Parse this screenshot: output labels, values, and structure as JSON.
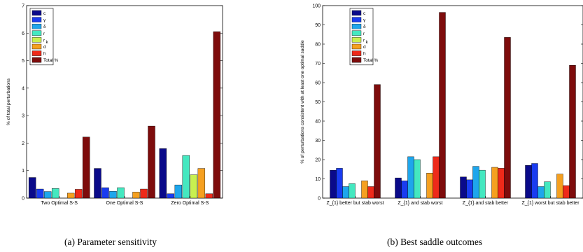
{
  "colors": {
    "c": "#0a0a8a",
    "gamma": "#1a3cf0",
    "b": "#1ea6ec",
    "r": "#44e8c0",
    "rk": "#c8f050",
    "d": "#f5a020",
    "h": "#ee2a1a",
    "total": "#7e0c0c"
  },
  "chart_data": [
    {
      "type": "bar",
      "caption": "(a)  Parameter sensitivity",
      "ylabel": "% of total perturbations",
      "ylim": [
        0,
        7
      ],
      "yticks": [
        "0",
        "1",
        "2",
        "3",
        "4",
        "5",
        "6",
        "7"
      ],
      "legend_position": "top-left",
      "categories": [
        "Two Optimal S-S",
        "One Optimal S-S",
        "Zero Optimal S-S"
      ],
      "series": [
        {
          "name": "c",
          "sub": "",
          "color_key": "c",
          "values": [
            0.75,
            1.08,
            1.8
          ]
        },
        {
          "name": "γ",
          "sub": "",
          "color_key": "gamma",
          "values": [
            0.33,
            0.38,
            0.16
          ]
        },
        {
          "name": "δ",
          "sub": "",
          "color_key": "b",
          "values": [
            0.24,
            0.25,
            0.48
          ]
        },
        {
          "name": "r",
          "sub": "",
          "color_key": "r",
          "values": [
            0.35,
            0.38,
            1.55
          ]
        },
        {
          "name": "r",
          "sub": "k",
          "color_key": "rk",
          "values": [
            0.0,
            0.0,
            0.85
          ]
        },
        {
          "name": "d",
          "sub": "",
          "color_key": "d",
          "values": [
            0.18,
            0.22,
            1.08
          ]
        },
        {
          "name": "h",
          "sub": "",
          "color_key": "h",
          "values": [
            0.32,
            0.33,
            0.16
          ]
        },
        {
          "name": "Total %",
          "sub": "",
          "color_key": "total",
          "values": [
            2.22,
            2.62,
            6.05
          ]
        }
      ]
    },
    {
      "type": "bar",
      "caption": "(b)  Best saddle outcomes",
      "ylabel": "% of perturbations consistent with at least one optimal saddle",
      "ylim": [
        0,
        100
      ],
      "yticks": [
        "0",
        "10",
        "20",
        "30",
        "40",
        "50",
        "60",
        "70",
        "80",
        "90",
        "100"
      ],
      "legend_position": "top-left",
      "categories": [
        "Z_{1} better but stab worst",
        "Z_{1} and stab worst",
        "Z_{1} and stab better",
        "Z_{1} worst but stab better"
      ],
      "series": [
        {
          "name": "c",
          "sub": "",
          "color_key": "c",
          "values": [
            14.5,
            10.5,
            11.0,
            17.0
          ]
        },
        {
          "name": "γ",
          "sub": "",
          "color_key": "gamma",
          "values": [
            15.5,
            9.0,
            9.5,
            18.0
          ]
        },
        {
          "name": "δ",
          "sub": "",
          "color_key": "b",
          "values": [
            6.0,
            21.5,
            16.5,
            6.0
          ]
        },
        {
          "name": "r",
          "sub": "",
          "color_key": "r",
          "values": [
            7.5,
            20.0,
            14.5,
            8.5
          ]
        },
        {
          "name": "r",
          "sub": "k",
          "color_key": "rk",
          "values": [
            0.0,
            0.0,
            0.0,
            0.0
          ]
        },
        {
          "name": "d",
          "sub": "",
          "color_key": "d",
          "values": [
            9.0,
            13.0,
            16.0,
            12.5
          ]
        },
        {
          "name": "h",
          "sub": "",
          "color_key": "h",
          "values": [
            6.0,
            21.5,
            15.5,
            6.5
          ]
        },
        {
          "name": "Total %",
          "sub": "",
          "color_key": "total",
          "values": [
            59.0,
            96.5,
            83.5,
            69.0
          ]
        }
      ]
    }
  ]
}
